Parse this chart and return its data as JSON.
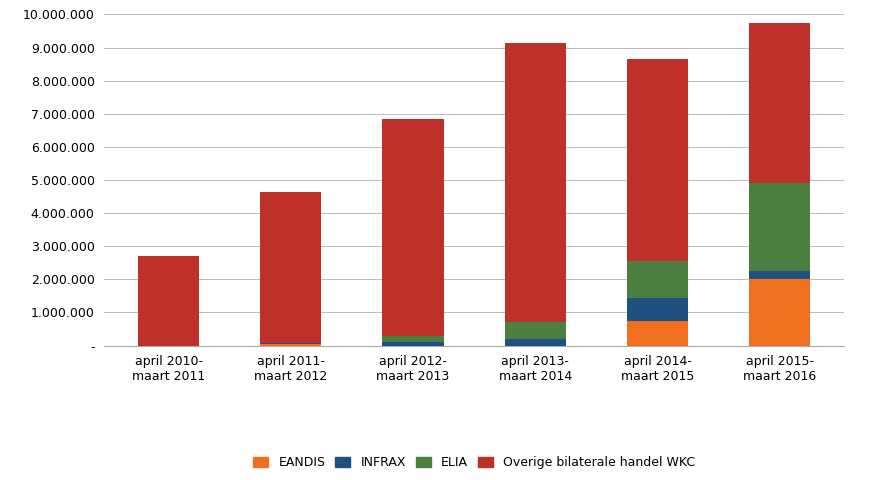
{
  "categories": [
    "april 2010-\nmaart 2011",
    "april 2011-\nmaart 2012",
    "april 2012-\nmaart 2013",
    "april 2013-\nmaart 2014",
    "april 2014-\nmaart 2015",
    "april 2015-\nmaart 2016"
  ],
  "series": {
    "EANDIS": [
      0,
      50000,
      0,
      0,
      750000,
      2000000
    ],
    "INFRAX": [
      0,
      30000,
      100000,
      200000,
      700000,
      250000
    ],
    "ELIA": [
      0,
      0,
      200000,
      500000,
      1100000,
      2650000
    ],
    "Overige bilaterale handel WKC": [
      2700000,
      4570000,
      6550000,
      8450000,
      6100000,
      4850000
    ]
  },
  "series_names": [
    "EANDIS",
    "INFRAX",
    "ELIA",
    "Overige bilaterale handel WKC"
  ],
  "bar_colors": [
    "#F07020",
    "#1F5080",
    "#4C8040",
    "#C0302A"
  ],
  "ylim": [
    0,
    10000000
  ],
  "ytick_step": 1000000,
  "background_color": "#ffffff",
  "grid_color": "#bbbbbb"
}
